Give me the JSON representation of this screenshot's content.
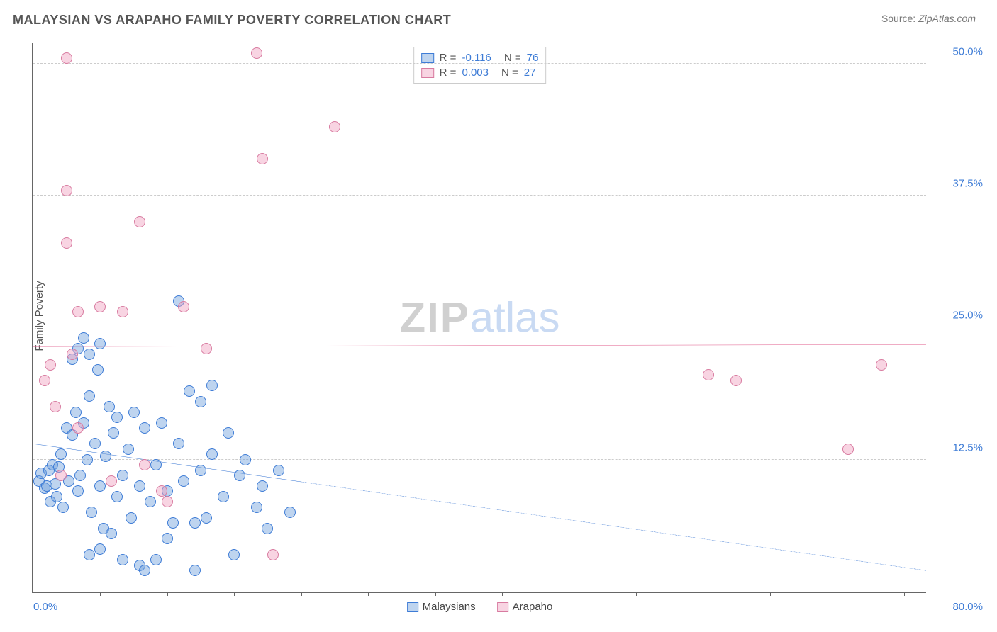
{
  "title": "MALAYSIAN VS ARAPAHO FAMILY POVERTY CORRELATION CHART",
  "source_label": "Source: ",
  "source_value": "ZipAtlas.com",
  "ylabel": "Family Poverty",
  "watermark": {
    "part1": "ZIP",
    "part2": "atlas"
  },
  "chart": {
    "type": "scatter",
    "xlim": [
      0,
      80
    ],
    "ylim": [
      0,
      52
    ],
    "x_origin_label": "0.0%",
    "x_max_label": "80.0%",
    "yticks": [
      {
        "value": 12.5,
        "label": "12.5%"
      },
      {
        "value": 25.0,
        "label": "25.0%"
      },
      {
        "value": 37.5,
        "label": "37.5%"
      },
      {
        "value": 50.0,
        "label": "50.0%"
      }
    ],
    "xticks_minor": [
      6,
      12,
      18,
      24,
      30,
      36,
      42,
      48,
      54,
      60,
      66,
      72,
      78
    ],
    "background_color": "#ffffff",
    "grid_color": "#cccccc",
    "axis_color": "#666666",
    "series": [
      {
        "name": "Malaysians",
        "fill_color": "rgba(110,160,220,0.45)",
        "stroke_color": "#3e7cd6",
        "marker_size": 16,
        "R": "-0.116",
        "N": "76",
        "trend": {
          "y_at_x0": 14.0,
          "y_at_xmax": 2.0,
          "solid_until_x": 24,
          "color": "#2f6fd0",
          "width": 2
        },
        "points": [
          [
            0.5,
            10.5
          ],
          [
            0.7,
            11.2
          ],
          [
            1.0,
            9.8
          ],
          [
            1.2,
            10.0
          ],
          [
            1.4,
            11.5
          ],
          [
            1.5,
            8.5
          ],
          [
            1.7,
            12.0
          ],
          [
            2.0,
            10.2
          ],
          [
            2.1,
            9.0
          ],
          [
            2.3,
            11.8
          ],
          [
            2.5,
            13.0
          ],
          [
            2.7,
            8.0
          ],
          [
            3.0,
            15.5
          ],
          [
            3.2,
            10.5
          ],
          [
            3.5,
            14.8
          ],
          [
            3.5,
            22.0
          ],
          [
            3.8,
            17.0
          ],
          [
            4.0,
            9.5
          ],
          [
            4.0,
            23.0
          ],
          [
            4.2,
            11.0
          ],
          [
            4.5,
            16.0
          ],
          [
            4.5,
            24.0
          ],
          [
            4.8,
            12.5
          ],
          [
            5.0,
            18.5
          ],
          [
            5.0,
            22.5
          ],
          [
            5.2,
            7.5
          ],
          [
            5.5,
            14.0
          ],
          [
            5.8,
            21.0
          ],
          [
            6.0,
            10.0
          ],
          [
            6.0,
            23.5
          ],
          [
            6.3,
            6.0
          ],
          [
            6.5,
            12.8
          ],
          [
            6.8,
            17.5
          ],
          [
            7.0,
            5.5
          ],
          [
            7.2,
            15.0
          ],
          [
            7.5,
            9.0
          ],
          [
            7.5,
            16.5
          ],
          [
            8.0,
            11.0
          ],
          [
            8.0,
            3.0
          ],
          [
            8.5,
            13.5
          ],
          [
            8.8,
            7.0
          ],
          [
            9.0,
            17.0
          ],
          [
            9.5,
            10.0
          ],
          [
            9.5,
            2.5
          ],
          [
            10.0,
            15.5
          ],
          [
            10.5,
            8.5
          ],
          [
            11.0,
            12.0
          ],
          [
            11.0,
            3.0
          ],
          [
            11.5,
            16.0
          ],
          [
            12.0,
            9.5
          ],
          [
            12.5,
            6.5
          ],
          [
            13.0,
            14.0
          ],
          [
            13.0,
            27.5
          ],
          [
            13.5,
            10.5
          ],
          [
            14.0,
            19.0
          ],
          [
            14.5,
            2.0
          ],
          [
            15.0,
            11.5
          ],
          [
            15.0,
            18.0
          ],
          [
            15.5,
            7.0
          ],
          [
            16.0,
            13.0
          ],
          [
            16.0,
            19.5
          ],
          [
            17.0,
            9.0
          ],
          [
            17.5,
            15.0
          ],
          [
            18.0,
            3.5
          ],
          [
            18.5,
            11.0
          ],
          [
            19.0,
            12.5
          ],
          [
            20.0,
            8.0
          ],
          [
            20.5,
            10.0
          ],
          [
            21.0,
            6.0
          ],
          [
            22.0,
            11.5
          ],
          [
            23.0,
            7.5
          ],
          [
            10.0,
            2.0
          ],
          [
            12.0,
            5.0
          ],
          [
            6.0,
            4.0
          ],
          [
            14.5,
            6.5
          ],
          [
            5.0,
            3.5
          ]
        ]
      },
      {
        "name": "Arapaho",
        "fill_color": "rgba(240,160,190,0.45)",
        "stroke_color": "#d87ba0",
        "marker_size": 16,
        "R": "0.003",
        "N": "27",
        "trend": {
          "y_at_x0": 23.2,
          "y_at_xmax": 23.4,
          "solid_until_x": 80,
          "color": "#e05a8a",
          "width": 2
        },
        "points": [
          [
            1.0,
            20.0
          ],
          [
            1.5,
            21.5
          ],
          [
            2.0,
            17.5
          ],
          [
            2.5,
            11.0
          ],
          [
            3.0,
            50.5
          ],
          [
            3.0,
            38.0
          ],
          [
            3.0,
            33.0
          ],
          [
            3.5,
            22.5
          ],
          [
            4.0,
            26.5
          ],
          [
            4.0,
            15.5
          ],
          [
            6.0,
            27.0
          ],
          [
            7.0,
            10.5
          ],
          [
            8.0,
            26.5
          ],
          [
            9.5,
            35.0
          ],
          [
            10.0,
            12.0
          ],
          [
            11.5,
            9.5
          ],
          [
            12.0,
            8.5
          ],
          [
            13.5,
            27.0
          ],
          [
            15.5,
            23.0
          ],
          [
            20.0,
            51.0
          ],
          [
            20.5,
            41.0
          ],
          [
            27.0,
            44.0
          ],
          [
            60.5,
            20.5
          ],
          [
            63.0,
            20.0
          ],
          [
            73.0,
            13.5
          ],
          [
            76.0,
            21.5
          ],
          [
            21.5,
            3.5
          ]
        ]
      }
    ],
    "legend_top": {
      "R_label": "R =",
      "N_label": "N ="
    },
    "legend_bottom_labels": {
      "s1": "Malaysians",
      "s2": "Arapaho"
    }
  }
}
